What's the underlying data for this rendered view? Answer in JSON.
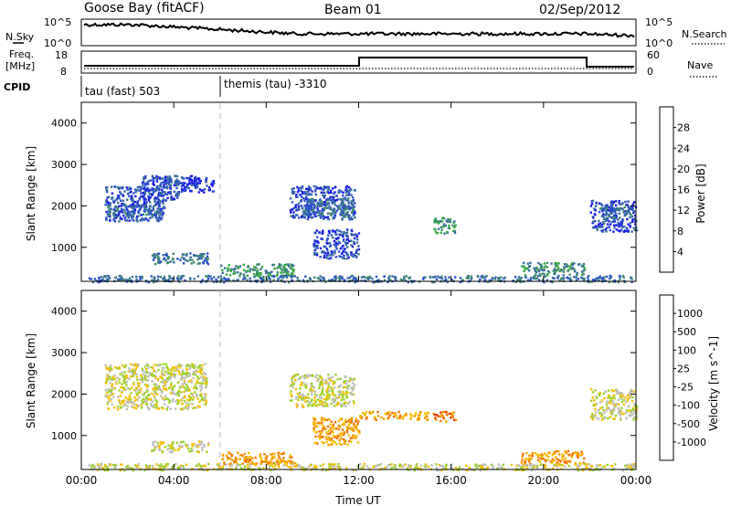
{
  "header": {
    "station": "Goose Bay (fitACF)",
    "beam": "Beam 01",
    "date": "02/Sep/2012"
  },
  "top_panels": {
    "nsky_label": "N.Sky",
    "nsky_top": "10^5",
    "nsky_bottom": "10^0",
    "nsearch_label": "N.Search",
    "nsearch_top": "10^5",
    "nsearch_bottom": "10^0",
    "freq_label": "Freq.",
    "freq_unit": "[MHz]",
    "freq_top": "18",
    "freq_bottom": "8",
    "nave_label": "Nave",
    "nave_top": "60",
    "nave_bottom": "0",
    "cpid_label": "CPID",
    "cpid_1": "tau (fast) 503",
    "cpid_2": "themis (tau) -3310"
  },
  "colors": {
    "ground_scatter": "#bdbdbd",
    "trace": "#000000",
    "dashed_marker": "#bbbbbb"
  },
  "chart_data": [
    {
      "type": "heatmap",
      "name": "power",
      "ylabel": "Slant Range [km]",
      "xlabel": "Time UT",
      "x_ticks": [
        "00:00",
        "04:00",
        "08:00",
        "12:00",
        "16:00",
        "20:00",
        "00:00"
      ],
      "y_ticks": [
        1000,
        2000,
        3000,
        4000
      ],
      "xlim_hours": [
        0,
        24
      ],
      "ylim_km": [
        180,
        4500
      ],
      "colorbar": {
        "label": "Power [dB]",
        "ticks": [
          "28",
          "24",
          "20",
          "16",
          "12",
          "8",
          "4"
        ],
        "colors": [
          "#1a1ae6",
          "#2a4fcc",
          "#356e9c",
          "#3c8a6e",
          "#37ad3c",
          "#9fcd26",
          "#f5c000",
          "#f5a100",
          "#f57b00",
          "#ec3b00",
          "#e60000"
        ]
      },
      "blobs": [
        {
          "t0": 1.0,
          "t1": 3.6,
          "r0": 1650,
          "r1": 2500,
          "level": 1
        },
        {
          "t0": 2.6,
          "t1": 4.2,
          "r0": 2150,
          "r1": 2750,
          "level": 1
        },
        {
          "t0": 1.1,
          "t1": 3.6,
          "r0": 1780,
          "r1": 2050,
          "level": 2
        },
        {
          "t0": 3.2,
          "t1": 5.0,
          "r0": 2450,
          "r1": 2750,
          "level": 1
        },
        {
          "t0": 4.3,
          "t1": 5.7,
          "r0": 2350,
          "r1": 2700,
          "level": 0
        },
        {
          "t0": 3.0,
          "t1": 5.5,
          "r0": 620,
          "r1": 880,
          "level": 2
        },
        {
          "t0": 6.0,
          "t1": 9.2,
          "r0": 330,
          "r1": 620,
          "level": 3
        },
        {
          "t0": 9.0,
          "t1": 11.8,
          "r0": 1700,
          "r1": 2500,
          "level": 1
        },
        {
          "t0": 9.6,
          "t1": 11.5,
          "r0": 1800,
          "r1": 2200,
          "level": 2
        },
        {
          "t0": 10.0,
          "t1": 12.0,
          "r0": 750,
          "r1": 1450,
          "level": 1
        },
        {
          "t0": 11.2,
          "t1": 11.8,
          "r0": 1650,
          "r1": 2150,
          "level": 2
        },
        {
          "t0": 15.2,
          "t1": 16.2,
          "r0": 1350,
          "r1": 1750,
          "level": 3
        },
        {
          "t0": 19.0,
          "t1": 21.8,
          "r0": 350,
          "r1": 650,
          "level": 3
        },
        {
          "t0": 22.0,
          "t1": 24.0,
          "r0": 1400,
          "r1": 2150,
          "level": 1
        },
        {
          "t0": 22.4,
          "t1": 23.8,
          "r0": 1700,
          "r1": 2000,
          "level": 2
        },
        {
          "t0": 0.3,
          "t1": 24.0,
          "r0": 180,
          "r1": 340,
          "level": 2
        }
      ]
    },
    {
      "type": "heatmap",
      "name": "velocity",
      "ylabel": "Slant Range [km]",
      "xlabel": "Time UT",
      "x_ticks": [
        "00:00",
        "04:00",
        "08:00",
        "12:00",
        "16:00",
        "20:00",
        "00:00"
      ],
      "y_ticks": [
        1000,
        2000,
        3000,
        4000
      ],
      "xlim_hours": [
        0,
        24
      ],
      "ylim_km": [
        180,
        4500
      ],
      "colorbar": {
        "label": "Velocity [m s^-1]",
        "ticks": [
          "1000",
          "500",
          "100",
          "25",
          "-25",
          "-100",
          "-500",
          "-1000"
        ],
        "colors": [
          "#1a1ae6",
          "#2d4bcc",
          "#3c8a6e",
          "#37ad3c",
          "#9bd12a",
          "#bdbdbd",
          "#f5c000",
          "#f59a00",
          "#f57200",
          "#ec3b00",
          "#e60000"
        ]
      },
      "blobs": [
        {
          "t0": 1.0,
          "t1": 5.4,
          "r0": 1650,
          "r1": 2750,
          "level": 5
        },
        {
          "t0": 3.0,
          "t1": 5.5,
          "r0": 620,
          "r1": 880,
          "level": 5
        },
        {
          "t0": 9.0,
          "t1": 11.8,
          "r0": 1700,
          "r1": 2500,
          "level": 5
        },
        {
          "t0": 10.0,
          "t1": 12.0,
          "r0": 800,
          "r1": 1450,
          "level": 7
        },
        {
          "t0": 12.0,
          "t1": 15.0,
          "r0": 1400,
          "r1": 1600,
          "level": 7
        },
        {
          "t0": 15.2,
          "t1": 16.2,
          "r0": 1350,
          "r1": 1600,
          "level": 8
        },
        {
          "t0": 6.0,
          "t1": 9.2,
          "r0": 330,
          "r1": 620,
          "level": 7
        },
        {
          "t0": 19.0,
          "t1": 21.8,
          "r0": 350,
          "r1": 650,
          "level": 7
        },
        {
          "t0": 22.0,
          "t1": 24.0,
          "r0": 1400,
          "r1": 2150,
          "level": 5
        },
        {
          "t0": 0.3,
          "t1": 24.0,
          "r0": 180,
          "r1": 340,
          "level": 5
        }
      ]
    }
  ]
}
